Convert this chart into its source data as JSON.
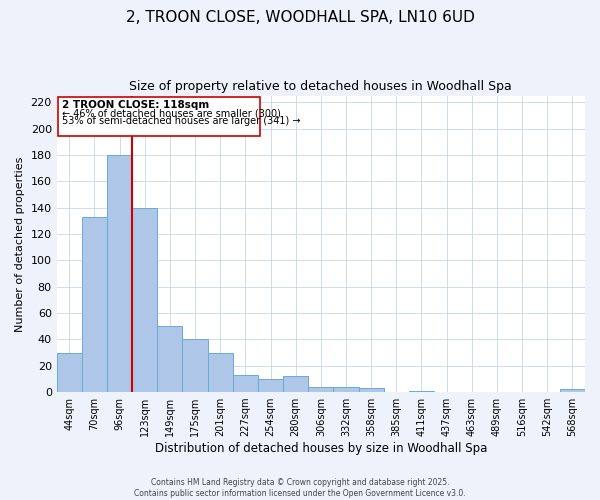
{
  "title_line1": "2, TROON CLOSE, WOODHALL SPA, LN10 6UD",
  "title_line2": "Size of property relative to detached houses in Woodhall Spa",
  "xlabel": "Distribution of detached houses by size in Woodhall Spa",
  "ylabel": "Number of detached properties",
  "bar_labels": [
    "44sqm",
    "70sqm",
    "96sqm",
    "123sqm",
    "149sqm",
    "175sqm",
    "201sqm",
    "227sqm",
    "254sqm",
    "280sqm",
    "306sqm",
    "332sqm",
    "358sqm",
    "385sqm",
    "411sqm",
    "437sqm",
    "463sqm",
    "489sqm",
    "516sqm",
    "542sqm",
    "568sqm"
  ],
  "bar_values": [
    30,
    133,
    180,
    140,
    50,
    40,
    30,
    13,
    10,
    12,
    4,
    4,
    3,
    0,
    1,
    0,
    0,
    0,
    0,
    0,
    2
  ],
  "bar_color": "#aec6e8",
  "bar_edge_color": "#6aaad4",
  "vline_color": "#cc0000",
  "annotation_title": "2 TROON CLOSE: 118sqm",
  "annotation_line1": "← 46% of detached houses are smaller (300)",
  "annotation_line2": "53% of semi-detached houses are larger (341) →",
  "annotation_box_color": "#ffffff",
  "annotation_box_edge": "#cc0000",
  "ylim": [
    0,
    225
  ],
  "yticks": [
    0,
    20,
    40,
    60,
    80,
    100,
    120,
    140,
    160,
    180,
    200,
    220
  ],
  "footnote_line1": "Contains HM Land Registry data © Crown copyright and database right 2025.",
  "footnote_line2": "Contains public sector information licensed under the Open Government Licence v3.0.",
  "background_color": "#eef2fb",
  "plot_bg_color": "#ffffff",
  "grid_color": "#c8d4e8"
}
